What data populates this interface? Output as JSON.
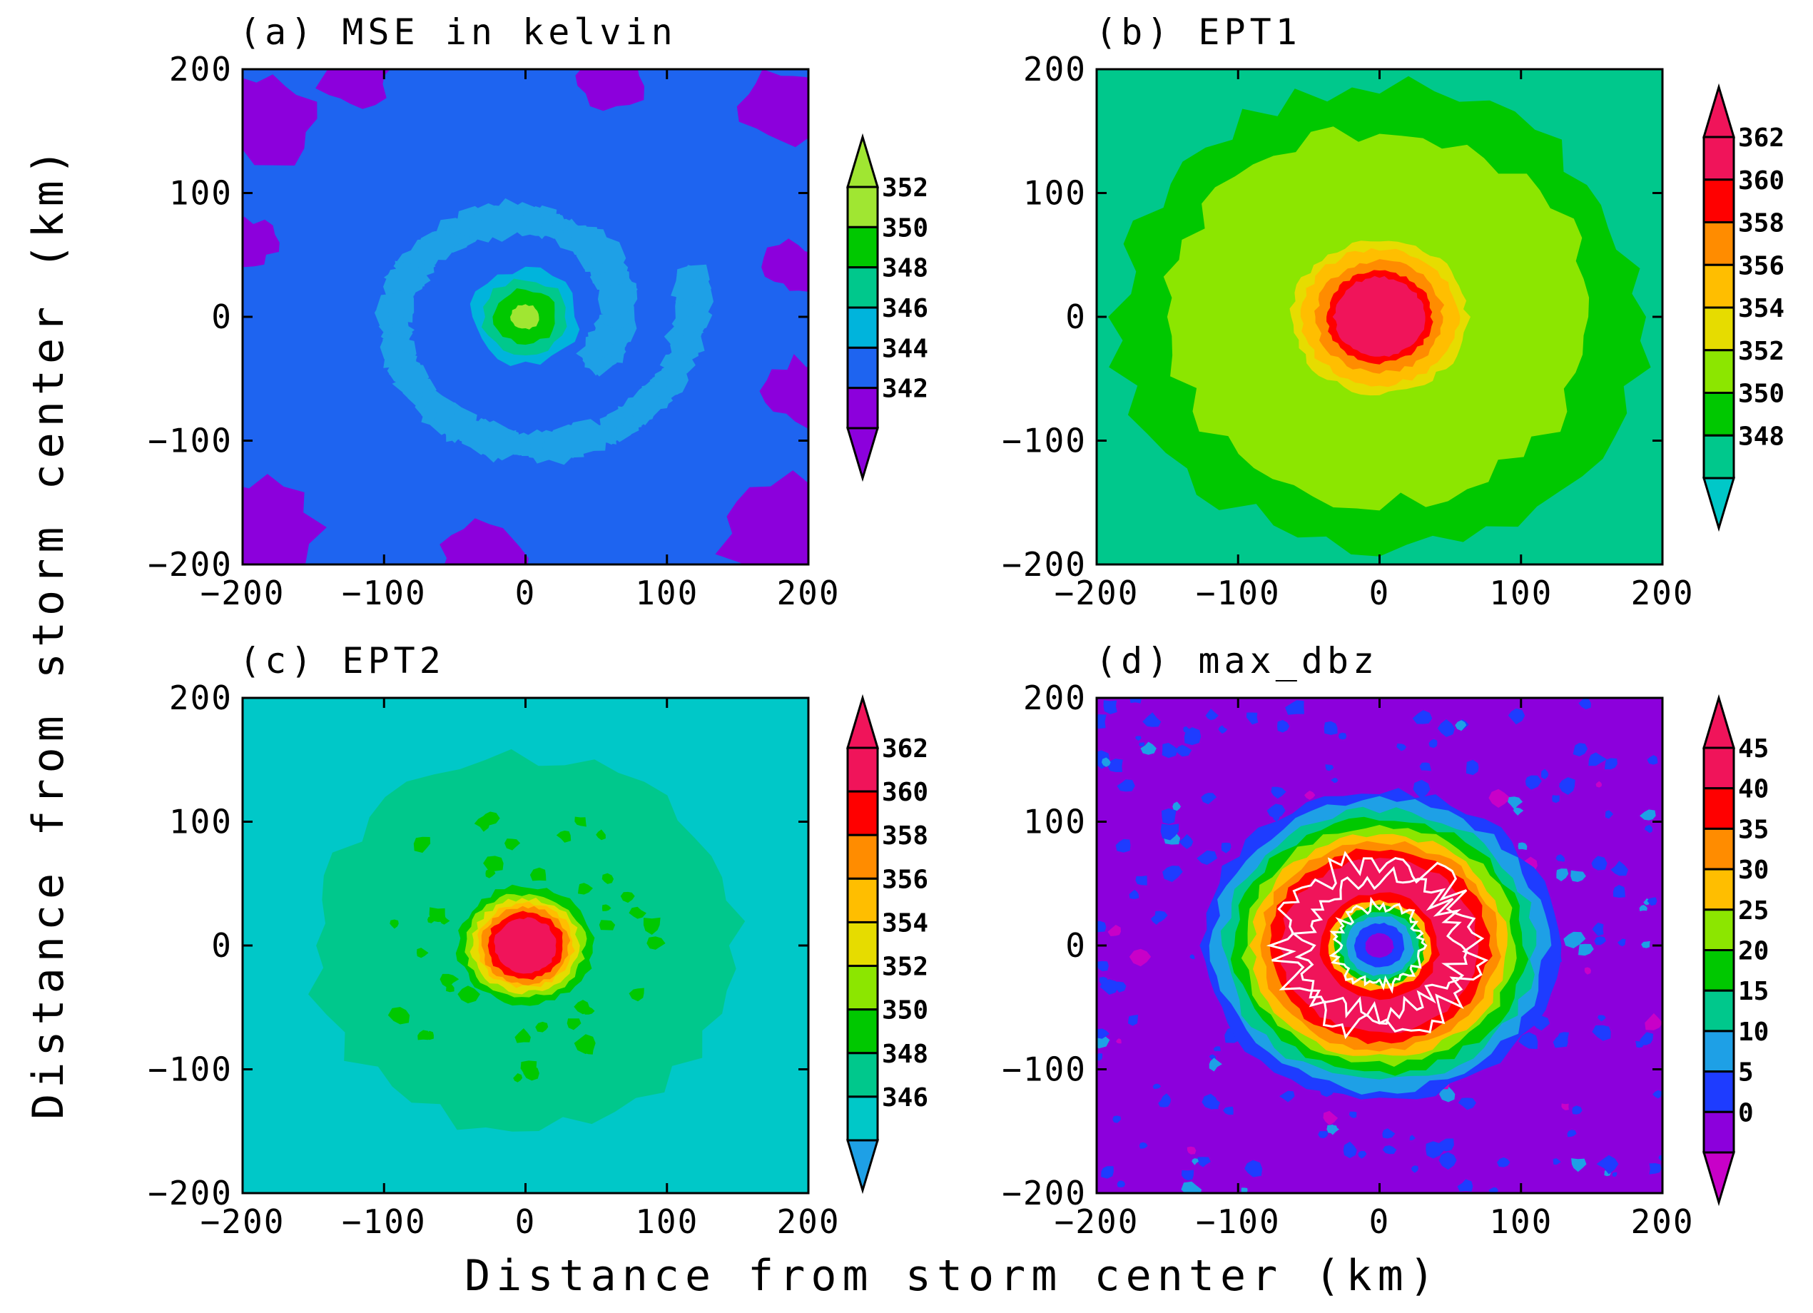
{
  "figure": {
    "xlabel": "Distance from storm center (km)",
    "ylabel": "Distance from storm center (km)"
  },
  "chart_data": [
    {
      "type": "heatmap",
      "id": "a",
      "title": "(a) MSE in kelvin",
      "x": [
        -200,
        200
      ],
      "y": [
        -200,
        200
      ],
      "xticks": [
        "−200",
        "−100",
        "0",
        "100",
        "200"
      ],
      "yticks": [
        "200",
        "100",
        "0",
        "−100",
        "−200"
      ],
      "colorbar": {
        "levels": [
          "352",
          "350",
          "348",
          "346",
          "344",
          "342"
        ],
        "colors": [
          "#a0e632",
          "#00c800",
          "#00c88c",
          "#00b4dc",
          "#1e64f0",
          "#8c00dc"
        ],
        "top_arrow": "#a0e632",
        "bottom_arrow": "#8c00dc"
      },
      "features": {
        "background": "#1e64f0",
        "corners": "#8c00dc",
        "spiral_band": "#1ea0e6",
        "core_levels": [
          {
            "value": 346,
            "color": "#00b4dc",
            "radius_km": 38
          },
          {
            "value": 348,
            "color": "#00c88c",
            "radius_km": 30
          },
          {
            "value": 350,
            "color": "#00c800",
            "radius_km": 22
          },
          {
            "value": 352,
            "color": "#a0e632",
            "radius_km": 10
          }
        ]
      }
    },
    {
      "type": "heatmap",
      "id": "b",
      "title": "(b) EPT1",
      "x": [
        -200,
        200
      ],
      "y": [
        -200,
        200
      ],
      "xticks": [
        "−200",
        "−100",
        "0",
        "100",
        "200"
      ],
      "yticks": [
        "200",
        "100",
        "0",
        "−100",
        "−200"
      ],
      "colorbar": {
        "levels": [
          "362",
          "360",
          "358",
          "356",
          "354",
          "352",
          "350",
          "348"
        ],
        "colors": [
          "#f0145a",
          "#ff0000",
          "#ff8c00",
          "#ffbe00",
          "#e6dc00",
          "#8ce600",
          "#00c800",
          "#00c88c"
        ],
        "top_arrow": "#f0145a",
        "bottom_arrow": "#00c8c8"
      },
      "features": {
        "background": "#00c88c",
        "core_levels": [
          {
            "value": 350,
            "color": "#00c800",
            "radius_km": 185
          },
          {
            "value": 352,
            "color": "#8ce600",
            "radius_km": 150
          },
          {
            "value": 354,
            "color": "#e6dc00",
            "radius_km": 62
          },
          {
            "value": 356,
            "color": "#ffbe00",
            "radius_km": 55
          },
          {
            "value": 358,
            "color": "#ff8c00",
            "radius_km": 45
          },
          {
            "value": 360,
            "color": "#ff0000",
            "radius_km": 37
          },
          {
            "value": 362,
            "color": "#f0145a",
            "radius_km": 32
          }
        ]
      }
    },
    {
      "type": "heatmap",
      "id": "c",
      "title": "(c) EPT2",
      "x": [
        -200,
        200
      ],
      "y": [
        -200,
        200
      ],
      "xticks": [
        "−200",
        "−100",
        "0",
        "100",
        "200"
      ],
      "yticks": [
        "200",
        "100",
        "0",
        "−100",
        "−200"
      ],
      "colorbar": {
        "levels": [
          "362",
          "360",
          "358",
          "356",
          "354",
          "352",
          "350",
          "348",
          "346"
        ],
        "colors": [
          "#f0145a",
          "#ff0000",
          "#ff8c00",
          "#ffbe00",
          "#e6dc00",
          "#8ce600",
          "#00c800",
          "#00c88c",
          "#00c8c8"
        ],
        "top_arrow": "#f0145a",
        "bottom_arrow": "#1ea0e6"
      },
      "features": {
        "background": "#00c8c8",
        "core_levels": [
          {
            "value": 348,
            "color": "#00c88c",
            "radius_km": 150
          },
          {
            "value": 350,
            "color": "#00c800",
            "radius_km": 48
          },
          {
            "value": 352,
            "color": "#8ce600",
            "radius_km": 42
          },
          {
            "value": 354,
            "color": "#e6dc00",
            "radius_km": 38
          },
          {
            "value": 356,
            "color": "#ffbe00",
            "radius_km": 34
          },
          {
            "value": 358,
            "color": "#ff8c00",
            "radius_km": 31
          },
          {
            "value": 360,
            "color": "#ff0000",
            "radius_km": 27
          },
          {
            "value": 362,
            "color": "#f0145a",
            "radius_km": 22
          }
        ]
      }
    },
    {
      "type": "heatmap",
      "id": "d",
      "title": "(d) max_dbz",
      "x": [
        -200,
        200
      ],
      "y": [
        -200,
        200
      ],
      "xticks": [
        "−200",
        "−100",
        "0",
        "100",
        "200"
      ],
      "yticks": [
        "200",
        "100",
        "0",
        "−100",
        "−200"
      ],
      "colorbar": {
        "levels": [
          "45",
          "40",
          "35",
          "30",
          "25",
          "20",
          "15",
          "10",
          "5",
          "0"
        ],
        "colors": [
          "#f0145a",
          "#ff0000",
          "#ff8c00",
          "#ffbe00",
          "#8ce600",
          "#00c800",
          "#00c88c",
          "#1ea0e6",
          "#1e3cff",
          "#8c00dc"
        ],
        "top_arrow": "#f0145a",
        "bottom_arrow": "#c800c8"
      },
      "features": {
        "background": "#8c00dc",
        "ring_levels": [
          {
            "value": 5,
            "color": "#1e3cff",
            "radius_km": 125
          },
          {
            "value": 10,
            "color": "#1ea0e6",
            "radius_km": 118
          },
          {
            "value": 15,
            "color": "#00c88c",
            "radius_km": 110
          },
          {
            "value": 20,
            "color": "#00c800",
            "radius_km": 103
          },
          {
            "value": 25,
            "color": "#8ce600",
            "radius_km": 96
          },
          {
            "value": 30,
            "color": "#ffbe00",
            "radius_km": 90
          },
          {
            "value": 35,
            "color": "#ff8c00",
            "radius_km": 84
          },
          {
            "value": 40,
            "color": "#ff0000",
            "radius_km": 78
          },
          {
            "value": 45,
            "color": "#f0145a",
            "radius_km": 70
          }
        ],
        "eye_levels": [
          {
            "value": 40,
            "color": "#ff0000",
            "radius_km": 42
          },
          {
            "value": 30,
            "color": "#ffbe00",
            "radius_km": 36
          },
          {
            "value": 20,
            "color": "#00c800",
            "radius_km": 32
          },
          {
            "value": 15,
            "color": "#00c88c",
            "radius_km": 28
          },
          {
            "value": 10,
            "color": "#1ea0e6",
            "radius_km": 24
          },
          {
            "value": 5,
            "color": "#1e3cff",
            "radius_km": 18
          },
          {
            "value": 0,
            "color": "#8c00dc",
            "radius_km": 10
          }
        ],
        "contour_color": "#ffffff"
      }
    }
  ]
}
